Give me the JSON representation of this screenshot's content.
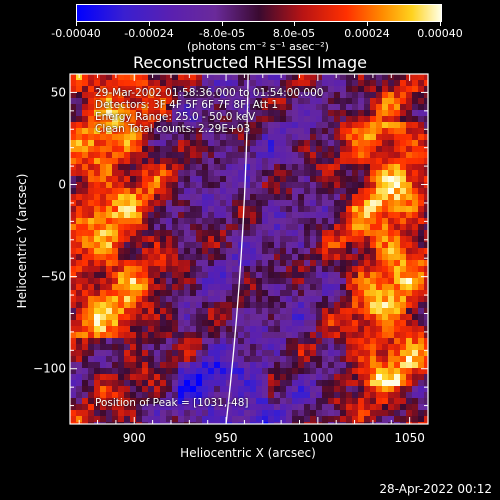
{
  "colorbar": {
    "ticks": [
      "-0.00040",
      "-0.00024",
      "-8.0e-05",
      "8.0e-05",
      "0.00024",
      "0.00040"
    ],
    "units": "(photons cm⁻² s⁻¹ asec⁻²)"
  },
  "chart_data": {
    "type": "heatmap",
    "title": "Reconstructed RHESSI Image",
    "xlabel": "Heliocentric X (arcsec)",
    "ylabel": "Heliocentric Y (arcsec)",
    "xlim": [
      865,
      1060
    ],
    "ylim": [
      -130,
      60
    ],
    "xticks": [
      "900",
      "950",
      "1000",
      "1050"
    ],
    "yticks": [
      "50",
      "0",
      "−50",
      "−100"
    ],
    "color_range": [
      -0.0004,
      0.0004
    ],
    "peak": [
      1031,
      -48
    ],
    "limb_curve_x_at_ylim": [
      950,
      962
    ],
    "annotations": [
      "29-Mar-2002 01:58:36.000 to 01:54:00.000",
      "Detectors: 3F 4F 5F 6F 7F 8F, Att 1",
      "Energy Range: 25.0 - 50.0 keV",
      "Clean     Total counts: 2.29E+03",
      "Position of Peak = [1031,-48]"
    ]
  },
  "timestamp": "28-Apr-2022 00:12"
}
